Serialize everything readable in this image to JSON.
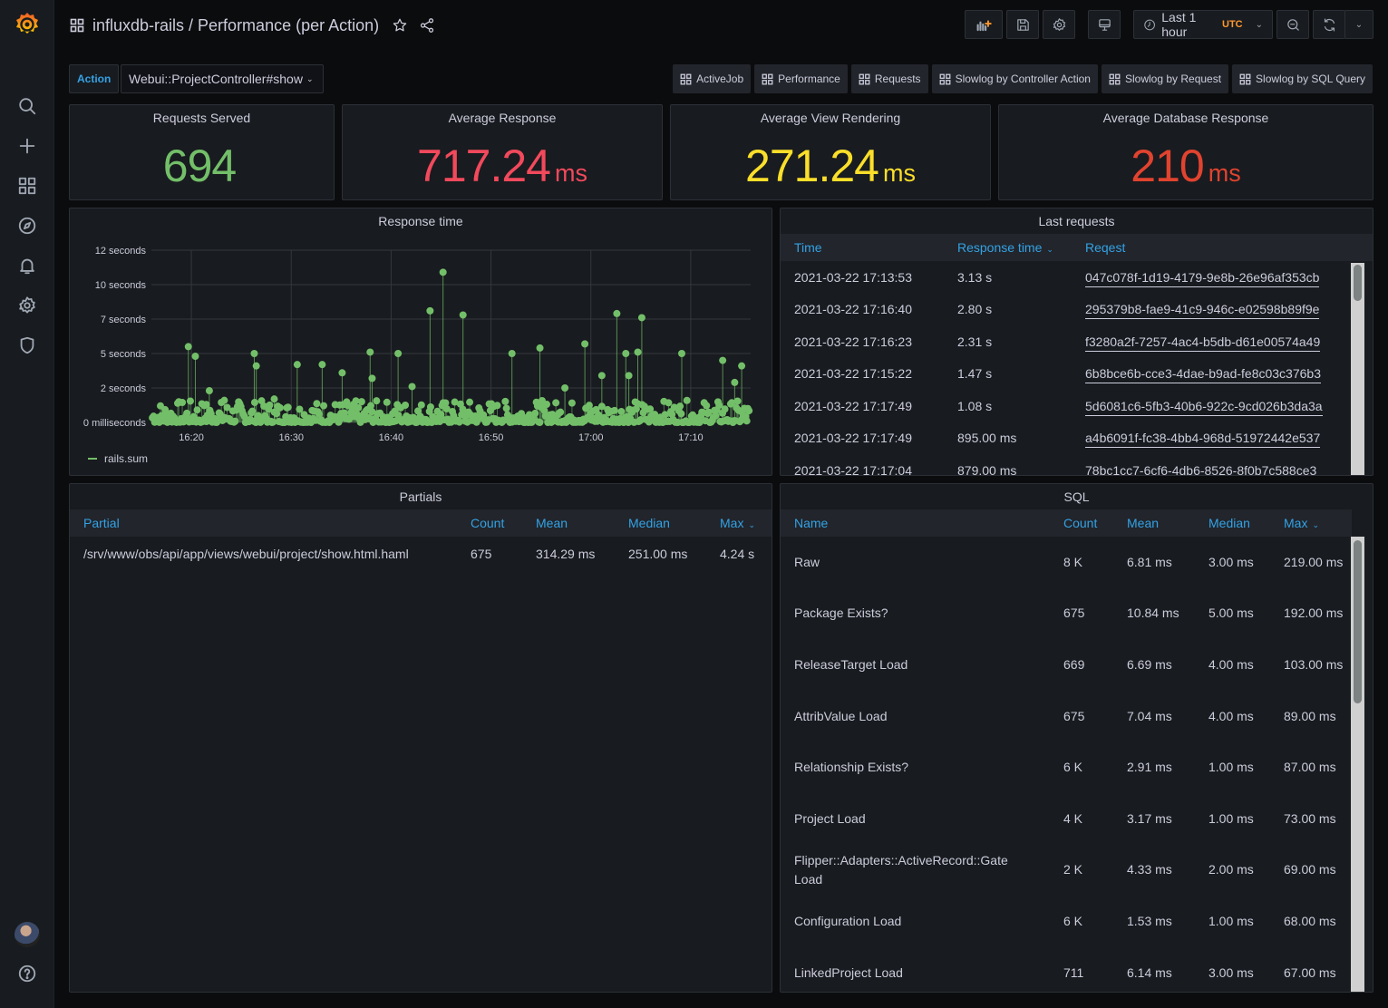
{
  "header": {
    "title": "influxdb-rails / Performance (per Action)",
    "time_range": "Last 1 hour",
    "timezone": "UTC"
  },
  "variables": {
    "action_label": "Action",
    "action_value": "Webui::ProjectController#show"
  },
  "links": [
    "ActiveJob",
    "Performance",
    "Requests",
    "Slowlog by Controller Action",
    "Slowlog by Request",
    "Slowlog by SQL Query"
  ],
  "stats": [
    {
      "title": "Requests Served",
      "value": "694",
      "unit": "",
      "color": "#73bf69"
    },
    {
      "title": "Average Response",
      "value": "717.24",
      "unit": "ms",
      "color": "#f2495c"
    },
    {
      "title": "Average View Rendering",
      "value": "271.24",
      "unit": "ms",
      "color": "#fade2a"
    },
    {
      "title": "Average Database Response",
      "value": "210",
      "unit": "ms",
      "color": "#e0432f"
    }
  ],
  "response_panel": {
    "title": "Response time",
    "legend": "rails.sum"
  },
  "chart_data": {
    "type": "scatter",
    "title": "Response time",
    "xlabel": "",
    "ylabel": "",
    "x_ticks": [
      "16:20",
      "16:30",
      "16:40",
      "16:50",
      "17:00",
      "17:10"
    ],
    "y_ticks": [
      "0 milliseconds",
      "2 seconds",
      "5 seconds",
      "7 seconds",
      "10 seconds",
      "12 seconds"
    ],
    "y_tick_values": [
      0,
      2.5,
      5,
      7.5,
      10,
      12.5
    ],
    "ylim": [
      0,
      12.5
    ],
    "xlim_minutes": [
      -2,
      58
    ],
    "x_origin": "16:18",
    "grid": true,
    "legend_position": "bottom-left",
    "series": [
      {
        "name": "rails.sum",
        "color": "#73bf69",
        "spikes_minutes_seconds": [
          [
            1.7,
            5.5
          ],
          [
            2.4,
            4.8
          ],
          [
            3.5,
            1.3
          ],
          [
            3.8,
            2.3
          ],
          [
            5.3,
            1.6
          ],
          [
            8.3,
            5.0
          ],
          [
            8.5,
            4.1
          ],
          [
            10.3,
            1.7
          ],
          [
            12.6,
            4.2
          ],
          [
            15.1,
            4.2
          ],
          [
            17.1,
            3.6
          ],
          [
            19.9,
            5.1
          ],
          [
            20.1,
            3.2
          ],
          [
            22.7,
            5.0
          ],
          [
            24.1,
            2.6
          ],
          [
            25.9,
            8.1
          ],
          [
            27.2,
            10.9
          ],
          [
            29.2,
            7.8
          ],
          [
            34.1,
            5.0
          ],
          [
            36.9,
            5.4
          ],
          [
            39.4,
            2.5
          ],
          [
            41.4,
            5.7
          ],
          [
            43.1,
            3.4
          ],
          [
            44.6,
            7.9
          ],
          [
            45.5,
            5.0
          ],
          [
            45.8,
            3.4
          ],
          [
            46.7,
            5.1
          ],
          [
            47.1,
            7.6
          ],
          [
            51.1,
            5.0
          ],
          [
            55.2,
            4.5
          ],
          [
            57.1,
            4.1
          ],
          [
            56.4,
            2.9
          ]
        ],
        "baseline_range_seconds": [
          0,
          1.6
        ]
      }
    ]
  },
  "last_requests": {
    "title": "Last requests",
    "columns": [
      "Time",
      "Response time",
      "Reqest"
    ],
    "rows": [
      [
        "2021-03-22 17:13:53",
        "3.13 s",
        "047c078f-1d19-4179-9e8b-26e96af353cb"
      ],
      [
        "2021-03-22 17:16:40",
        "2.80 s",
        "295379b8-fae9-41c9-946c-e02598b89f9e"
      ],
      [
        "2021-03-22 17:16:23",
        "2.31 s",
        "f3280a2f-7257-4ac4-b5db-d61e00574a49"
      ],
      [
        "2021-03-22 17:15:22",
        "1.47 s",
        "6b8bce6b-cce3-4dae-b9ad-fe8c03c376b3"
      ],
      [
        "2021-03-22 17:17:49",
        "1.08 s",
        "5d6081c6-5fb3-40b6-922c-9cd026b3da3a"
      ],
      [
        "2021-03-22 17:17:49",
        "895.00 ms",
        "a4b6091f-fc38-4bb4-968d-51972442e537"
      ],
      [
        "2021-03-22 17:17:04",
        "879.00 ms",
        "78bc1cc7-6cf6-4db6-8526-8f0b7c588ce3"
      ]
    ]
  },
  "partials": {
    "title": "Partials",
    "columns": [
      "Partial",
      "Count",
      "Mean",
      "Median",
      "Max"
    ],
    "rows": [
      [
        "/srv/www/obs/api/app/views/webui/project/show.html.haml",
        "675",
        "314.29 ms",
        "251.00 ms",
        "4.24 s"
      ]
    ]
  },
  "sql": {
    "title": "SQL",
    "columns": [
      "Name",
      "Count",
      "Mean",
      "Median",
      "Max"
    ],
    "rows": [
      [
        "Raw",
        "8 K",
        "6.81 ms",
        "3.00 ms",
        "219.00 ms"
      ],
      [
        "Package Exists?",
        "675",
        "10.84 ms",
        "5.00 ms",
        "192.00 ms"
      ],
      [
        "ReleaseTarget Load",
        "669",
        "6.69 ms",
        "4.00 ms",
        "103.00 ms"
      ],
      [
        "AttribValue Load",
        "675",
        "7.04 ms",
        "4.00 ms",
        "89.00 ms"
      ],
      [
        "Relationship Exists?",
        "6 K",
        "2.91 ms",
        "1.00 ms",
        "87.00 ms"
      ],
      [
        "Project Load",
        "4 K",
        "3.17 ms",
        "1.00 ms",
        "73.00 ms"
      ],
      [
        "Flipper::Adapters::ActiveRecord::Gate Load",
        "2 K",
        "4.33 ms",
        "2.00 ms",
        "69.00 ms"
      ],
      [
        "Configuration Load",
        "6 K",
        "1.53 ms",
        "1.00 ms",
        "68.00 ms"
      ],
      [
        "LinkedProject Load",
        "711",
        "6.14 ms",
        "3.00 ms",
        "67.00 ms"
      ]
    ]
  }
}
